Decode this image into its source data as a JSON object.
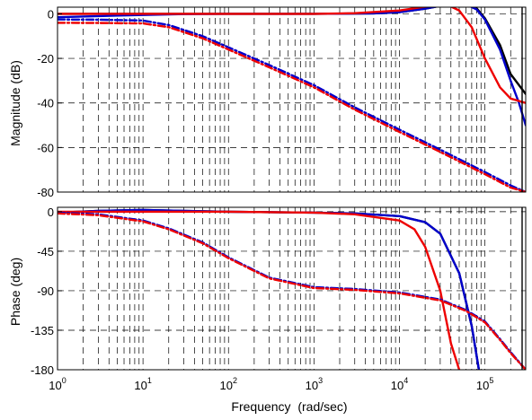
{
  "chart_data": [
    {
      "type": "line",
      "panel": "magnitude",
      "xscale": "log",
      "xlim": [
        1,
        300000
      ],
      "ylim": [
        -80,
        5
      ],
      "ylabel": "Magnitude (dB)",
      "xlabel": "",
      "grid": true,
      "y_ticks": [
        0,
        -20,
        -40,
        -60,
        -80
      ],
      "y_tick_labels": [
        "0",
        "-20",
        "-40",
        "-60",
        "-80"
      ],
      "series": [
        {
          "color": "#000000",
          "style": "solid",
          "x": [
            1,
            100,
            1000,
            5000,
            10000,
            20000,
            40000,
            60000,
            80000,
            100000,
            150000,
            200000,
            300000
          ],
          "y": [
            0,
            0,
            0,
            0.2,
            0.8,
            2.3,
            4.5,
            4.5,
            2.5,
            -2,
            -14,
            -27,
            -36
          ]
        },
        {
          "color": "#0000cc",
          "style": "solid",
          "x": [
            1,
            3,
            10,
            30,
            100,
            1000,
            5000,
            10000,
            20000,
            40000,
            60000,
            80000,
            100000,
            150000,
            200000,
            250000,
            300000
          ],
          "y": [
            -1.5,
            -1,
            -0.5,
            -0.1,
            0,
            0,
            0.2,
            0.8,
            2.3,
            4.5,
            4.3,
            2,
            -2.5,
            -16,
            -30,
            -40,
            -50
          ]
        },
        {
          "color": "#ee0000",
          "style": "solid",
          "x": [
            1,
            100,
            1000,
            3000,
            10000,
            20000,
            30000,
            40000,
            50000,
            70000,
            100000,
            150000,
            200000,
            300000
          ],
          "y": [
            0,
            0,
            0,
            0.3,
            1.5,
            3.2,
            3.8,
            3.3,
            1.5,
            -6,
            -20,
            -33,
            -38,
            -40
          ]
        },
        {
          "color": "#0000cc",
          "style": "dashdot",
          "x": [
            1,
            3,
            10,
            20,
            50,
            100,
            300,
            1000,
            3000,
            10000,
            30000,
            100000,
            200000,
            300000
          ],
          "y": [
            -2.5,
            -2.6,
            -3,
            -5,
            -10,
            -15,
            -23,
            -32,
            -42,
            -52,
            -61,
            -71,
            -77,
            -80
          ]
        },
        {
          "color": "#ee0000",
          "style": "dashdot",
          "x": [
            1,
            3,
            10,
            20,
            50,
            100,
            300,
            1000,
            3000,
            10000,
            30000,
            100000,
            200000,
            300000
          ],
          "y": [
            -4,
            -4.1,
            -4.3,
            -6,
            -11,
            -16,
            -24,
            -33,
            -43,
            -53,
            -62,
            -72,
            -78,
            -80
          ]
        }
      ]
    },
    {
      "type": "line",
      "panel": "phase",
      "xscale": "log",
      "xlim": [
        1,
        300000
      ],
      "ylim": [
        -180,
        5
      ],
      "ylabel": "Phase (deg)",
      "xlabel": "Frequency  (rad/sec)",
      "grid": true,
      "y_ticks": [
        0,
        -45,
        -90,
        -135,
        -180
      ],
      "y_tick_labels": [
        "0",
        "-45",
        "-90",
        "-135",
        "-180"
      ],
      "x_ticks": [
        1,
        10,
        100,
        1000,
        10000,
        100000
      ],
      "x_tick_labels": [
        {
          "base": "10",
          "exp": "0"
        },
        {
          "base": "10",
          "exp": "1"
        },
        {
          "base": "10",
          "exp": "2"
        },
        {
          "base": "10",
          "exp": "3"
        },
        {
          "base": "10",
          "exp": "4"
        },
        {
          "base": "10",
          "exp": "5"
        }
      ],
      "series": [
        {
          "color": "#000000",
          "style": "solid",
          "x": [
            1,
            3,
            10,
            30,
            100,
            1000,
            3000,
            10000,
            20000,
            30000,
            50000,
            70000,
            85000
          ],
          "y": [
            -1,
            1,
            2,
            1,
            0,
            -1,
            -2,
            -5,
            -12,
            -25,
            -70,
            -130,
            -180
          ]
        },
        {
          "color": "#0000cc",
          "style": "solid",
          "x": [
            1,
            3,
            10,
            30,
            100,
            1000,
            3000,
            10000,
            20000,
            30000,
            50000,
            70000,
            85000
          ],
          "y": [
            -1,
            1,
            2,
            1,
            0,
            -1,
            -2,
            -5,
            -12,
            -25,
            -70,
            -130,
            -180
          ]
        },
        {
          "color": "#ee0000",
          "style": "solid",
          "x": [
            1,
            10,
            100,
            1000,
            3000,
            10000,
            15000,
            20000,
            30000,
            40000,
            50000
          ],
          "y": [
            0,
            0,
            0,
            -1,
            -3,
            -10,
            -20,
            -40,
            -90,
            -150,
            -180
          ]
        },
        {
          "color": "#0000cc",
          "style": "dashdot",
          "x": [
            1,
            3,
            10,
            20,
            50,
            100,
            300,
            1000,
            3000,
            10000,
            30000,
            60000,
            100000,
            150000,
            200000,
            300000
          ],
          "y": [
            -1,
            -3,
            -10,
            -19,
            -35,
            -52,
            -75,
            -86,
            -88,
            -92,
            -100,
            -112,
            -125,
            -145,
            -160,
            -180
          ]
        },
        {
          "color": "#ee0000",
          "style": "dashdot",
          "x": [
            1,
            3,
            10,
            20,
            50,
            100,
            300,
            1000,
            3000,
            10000,
            30000,
            60000,
            100000,
            150000,
            200000,
            300000
          ],
          "y": [
            -2,
            -4,
            -11,
            -20,
            -36,
            -53,
            -76,
            -87,
            -89,
            -93,
            -101,
            -113,
            -126,
            -146,
            -161,
            -180
          ]
        }
      ]
    }
  ]
}
